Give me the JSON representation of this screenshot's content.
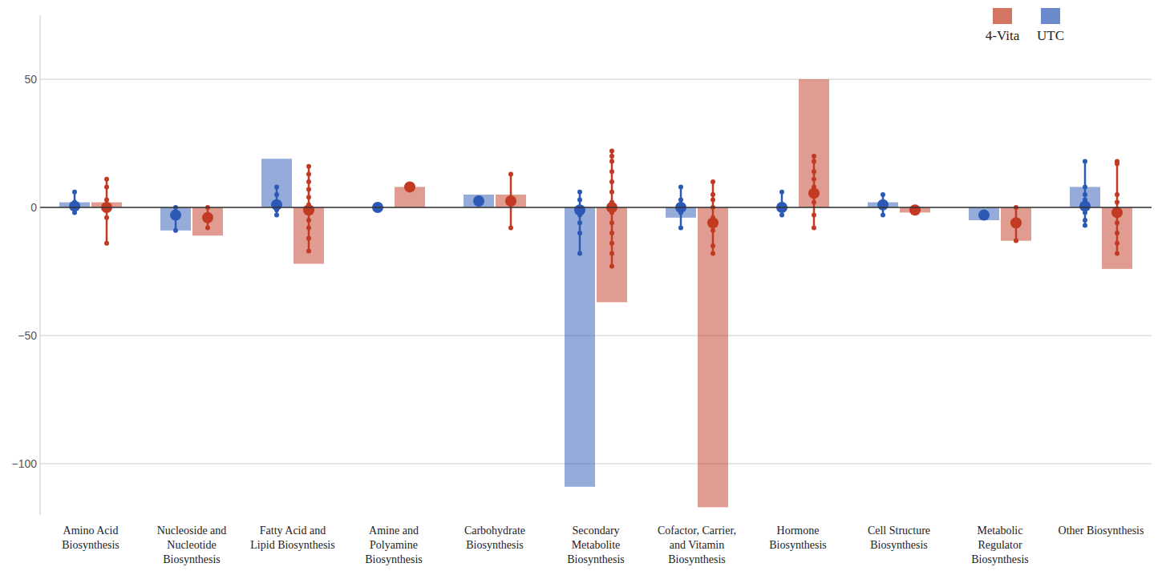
{
  "chart_data": {
    "type": "bar",
    "categories": [
      "Amino Acid Biosynthesis",
      "Nucleoside and Nucleotide Biosynthesis",
      "Fatty Acid and Lipid Biosynthesis",
      "Amine and Polyamine Biosynthesis",
      "Carbohydrate Biosynthesis",
      "Secondary Metabolite Biosynthesis",
      "Cofactor, Carrier, and Vitamin Biosynthesis",
      "Hormone Biosynthesis",
      "Cell Structure Biosynthesis",
      "Metabolic Regulator Biosynthesis",
      "Other Biosynthesis"
    ],
    "series": [
      {
        "name": "UTC",
        "color": "#2b59b5",
        "values": [
          2,
          -9,
          19,
          0,
          5,
          -109,
          -4,
          0,
          2,
          -5,
          8
        ],
        "means": [
          0.5,
          -3,
          1,
          0,
          2.5,
          -1,
          0,
          0,
          1,
          -3,
          0.5
        ],
        "lows": [
          -2,
          -9,
          -3,
          0,
          2.5,
          -18,
          -8,
          -3,
          -3,
          -3,
          -7
        ],
        "highs": [
          6,
          0,
          8,
          0,
          2.5,
          6,
          8,
          6,
          5,
          -3,
          18
        ],
        "points": [
          [
            -2,
            0,
            2,
            6
          ],
          [
            -9,
            -3,
            0
          ],
          [
            -3,
            -1,
            2,
            5,
            8
          ],
          [
            0
          ],
          [
            2.5
          ],
          [
            -18,
            -10,
            -6,
            -3,
            0,
            3,
            6
          ],
          [
            -8,
            -2,
            3,
            8
          ],
          [
            -3,
            0,
            6
          ],
          [
            -3,
            1,
            5
          ],
          [
            -3
          ],
          [
            -7,
            -5,
            -2,
            3,
            5,
            8,
            18
          ]
        ]
      },
      {
        "name": "4-Vita",
        "color": "#c23a22",
        "values": [
          2,
          -11,
          -22,
          8,
          5,
          -37,
          -117,
          50,
          -2,
          -13,
          -24
        ],
        "means": [
          0,
          -4,
          -1,
          8,
          2.5,
          0,
          -6,
          5.5,
          -1,
          -6,
          -2
        ],
        "lows": [
          -14,
          -8,
          -17,
          8,
          -8,
          -23,
          -18,
          -8,
          -1,
          -13,
          -18
        ],
        "highs": [
          11,
          0,
          16,
          8,
          13,
          22,
          10,
          20,
          -1,
          0,
          18
        ],
        "points": [
          [
            -14,
            -4,
            3,
            8,
            11
          ],
          [
            -8,
            0
          ],
          [
            -17,
            -12,
            -8,
            -5,
            -2,
            1,
            4,
            7,
            10,
            13,
            16
          ],
          [
            8
          ],
          [
            -8,
            13
          ],
          [
            -23,
            -18,
            -14,
            -10,
            -6,
            -2,
            2,
            6,
            10,
            14,
            18,
            20,
            22
          ],
          [
            -18,
            -15,
            -9,
            -4,
            0,
            3,
            5,
            10
          ],
          [
            -8,
            -3,
            2,
            8,
            11,
            14,
            18,
            20
          ],
          [
            -1
          ],
          [
            -13,
            0
          ],
          [
            -18,
            -14,
            -10,
            -6,
            -2,
            2,
            5,
            17,
            18
          ]
        ]
      }
    ],
    "ylim": [
      -120,
      75
    ],
    "yticks": [
      -100,
      -50,
      0,
      50
    ],
    "grid": true,
    "legend": "top-right"
  }
}
